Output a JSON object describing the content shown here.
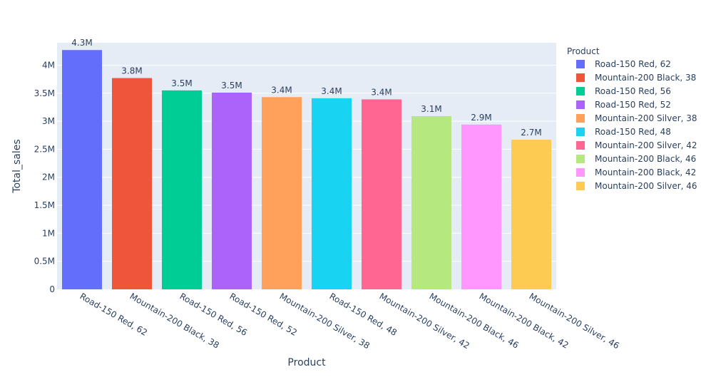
{
  "chart_data": {
    "type": "bar",
    "categories": [
      "Road-150 Red, 62",
      "Mountain-200 Black, 38",
      "Road-150 Red, 56",
      "Road-150 Red, 52",
      "Mountain-200 Silver, 38",
      "Road-150 Red, 48",
      "Mountain-200 Silver, 42",
      "Mountain-200 Black, 46",
      "Mountain-200 Black, 42",
      "Mountain-200 Silver, 46"
    ],
    "values": [
      4270000,
      3770000,
      3550000,
      3510000,
      3430000,
      3410000,
      3390000,
      3090000,
      2940000,
      2670000
    ],
    "data_labels": [
      "4.3M",
      "3.8M",
      "3.5M",
      "3.5M",
      "3.4M",
      "3.4M",
      "3.4M",
      "3.1M",
      "2.9M",
      "2.7M"
    ],
    "colors": [
      "#636efa",
      "#EF553B",
      "#00cc96",
      "#ab63fa",
      "#FFA15A",
      "#19d3f3",
      "#FF6692",
      "#B6E880",
      "#FF97FF",
      "#FECB52"
    ],
    "xlabel": "Product",
    "ylabel": "Total_sales",
    "ylim": [
      0,
      4400000
    ],
    "yticks": [
      0,
      500000,
      1000000,
      1500000,
      2000000,
      2500000,
      3000000,
      3500000,
      4000000
    ],
    "ytick_labels": [
      "0",
      "0.5M",
      "1M",
      "1.5M",
      "2M",
      "2.5M",
      "3M",
      "3.5M",
      "4M"
    ],
    "legend_title": "Product",
    "legend_position": "right",
    "grid": true,
    "plot_background": "#e5ecf6"
  }
}
